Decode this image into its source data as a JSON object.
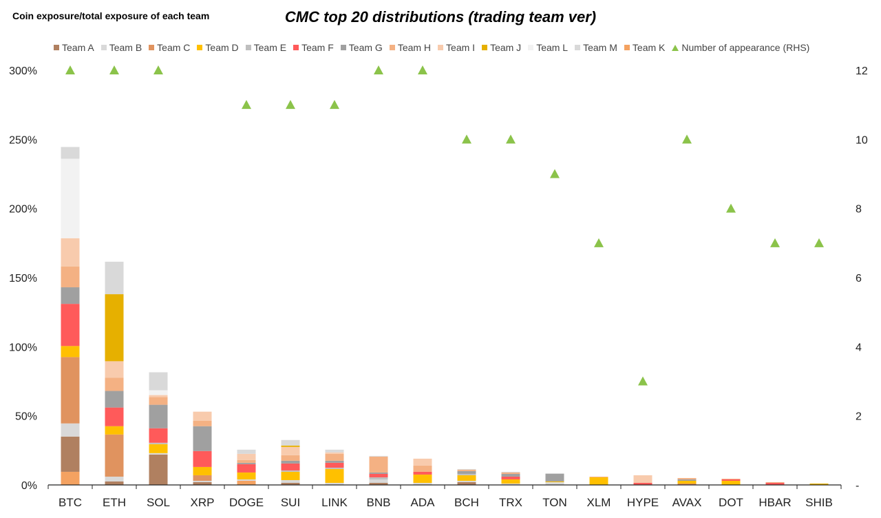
{
  "chart_data": {
    "type": "bar",
    "stacked": true,
    "title": "CMC top 20 distributions (trading team ver)",
    "ylabel": "Coin exposure/total exposure of each team",
    "y2label": "Number of appearance (RHS)",
    "ylim": [
      0,
      300
    ],
    "y2lim": [
      0,
      12
    ],
    "yticks": [
      "0%",
      "50%",
      "100%",
      "150%",
      "200%",
      "250%",
      "300%"
    ],
    "y2ticks": [
      "-",
      "2",
      "4",
      "6",
      "8",
      "10",
      "12"
    ],
    "categories": [
      "BTC",
      "ETH",
      "SOL",
      "XRP",
      "DOGE",
      "SUI",
      "LINK",
      "BNB",
      "ADA",
      "BCH",
      "TRX",
      "TON",
      "XLM",
      "HYPE",
      "AVAX",
      "DOT",
      "HBAR",
      "SHIB"
    ],
    "series": [
      {
        "name": "Team K",
        "color": "#F4A261",
        "values": [
          9.5,
          0,
          0,
          0,
          3,
          0,
          0,
          0,
          0,
          0,
          0,
          0,
          0,
          0,
          0,
          0,
          0,
          0
        ]
      },
      {
        "name": "Team A",
        "color": "#B08060",
        "values": [
          25.5,
          2.5,
          22,
          2,
          0,
          1.5,
          0,
          1.5,
          0,
          2,
          0,
          0,
          0,
          0,
          0,
          0,
          0,
          0
        ]
      },
      {
        "name": "Team B",
        "color": "#D9D9D9",
        "values": [
          9.5,
          3.5,
          1,
          1,
          1,
          2,
          1.5,
          2.5,
          1.5,
          1,
          1,
          2,
          0,
          0,
          0,
          0,
          0,
          0
        ]
      },
      {
        "name": "Team C",
        "color": "#E0935F",
        "values": [
          48,
          30.5,
          0,
          4,
          0,
          0,
          0,
          0,
          0,
          0,
          0,
          0,
          0,
          0,
          1,
          0,
          0,
          0
        ]
      },
      {
        "name": "Team D",
        "color": "#FFC000",
        "values": [
          8,
          6,
          6.5,
          6,
          5,
          6,
          10,
          0,
          6,
          4,
          3,
          0.5,
          5.5,
          0,
          2,
          3,
          0,
          0.5
        ]
      },
      {
        "name": "Team E",
        "color": "#BFBFBF",
        "values": [
          0,
          0,
          1,
          0,
          0,
          1,
          1,
          1.5,
          0,
          1,
          0,
          0,
          0,
          0,
          0,
          0,
          0,
          0
        ]
      },
      {
        "name": "Team F",
        "color": "#FF5A5A",
        "values": [
          30.5,
          13.5,
          10.5,
          11.5,
          6,
          5,
          3.5,
          2.5,
          2,
          0,
          2,
          0,
          0,
          1.5,
          0,
          1,
          1.5,
          0
        ]
      },
      {
        "name": "Team G",
        "color": "#A0A0A0",
        "values": [
          12,
          12,
          17,
          18,
          1,
          2,
          1.5,
          1,
          0,
          2,
          2,
          5.5,
          0,
          0,
          1,
          0,
          0,
          0
        ]
      },
      {
        "name": "Team H",
        "color": "#F4B183",
        "values": [
          15,
          9.5,
          5.5,
          4,
          2,
          4,
          5,
          11.5,
          4.5,
          1,
          1,
          0,
          0.5,
          0,
          1,
          0.5,
          0.5,
          0
        ]
      },
      {
        "name": "Team I",
        "color": "#F8CBAD",
        "values": [
          20.5,
          12,
          1.5,
          6.5,
          4.5,
          6,
          1,
          0,
          5,
          0,
          0,
          0,
          0,
          5.5,
          0,
          0,
          0,
          0
        ]
      },
      {
        "name": "Team J",
        "color": "#E6B000",
        "values": [
          0,
          48.5,
          0,
          0,
          0,
          1,
          0,
          0,
          0,
          0,
          0,
          0,
          0,
          0,
          0,
          0,
          0,
          0.5
        ]
      },
      {
        "name": "Team L",
        "color": "#F2F2F2",
        "values": [
          57.5,
          0,
          3.5,
          0,
          0,
          0,
          0,
          0,
          0,
          0,
          0,
          0,
          0,
          0,
          0,
          0,
          0,
          0
        ]
      },
      {
        "name": "Team M",
        "color": "#D9D9D9",
        "values": [
          8.5,
          23.5,
          13,
          0,
          3,
          4,
          2,
          0.5,
          0,
          0.5,
          0.5,
          0.5,
          0,
          0,
          0,
          0,
          0,
          0
        ]
      }
    ],
    "legend_order": [
      "Team A",
      "Team B",
      "Team C",
      "Team D",
      "Team E",
      "Team F",
      "Team G",
      "Team H",
      "Team I",
      "Team J",
      "Team L",
      "Team M",
      "Team K"
    ],
    "appearance": {
      "name": "Number of appearance (RHS)",
      "color": "#8BC34A",
      "values": [
        12,
        12,
        12,
        0,
        11,
        11,
        11,
        12,
        12,
        10,
        10,
        9,
        7,
        3,
        10,
        8,
        7,
        7
      ]
    },
    "legend_position": "top"
  }
}
